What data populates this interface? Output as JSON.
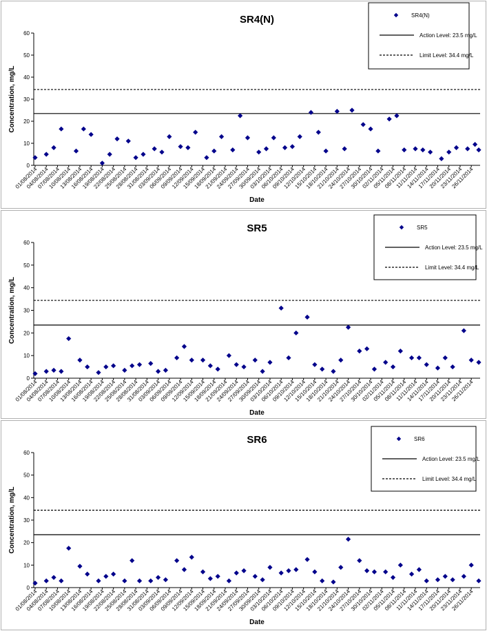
{
  "dates": [
    "01/08/2014",
    "04/08/2014",
    "07/08/2014",
    "10/08/2014",
    "13/08/2014",
    "16/08/2014",
    "19/08/2014",
    "22/08/2014",
    "25/08/2014",
    "28/08/2014",
    "31/08/2014",
    "03/09/2014",
    "06/09/2014",
    "09/09/2014",
    "12/09/2014",
    "15/09/2014",
    "18/09/2014",
    "21/09/2014",
    "24/09/2014",
    "27/09/2014",
    "30/09/2014",
    "03/10/2014",
    "06/10/2014",
    "09/10/2014",
    "12/10/2014",
    "15/10/2014",
    "18/10/2014",
    "21/10/2014",
    "24/10/2014",
    "27/10/2014",
    "30/10/2014",
    "02/11/2014",
    "05/11/2014",
    "08/11/2014",
    "11/11/2014",
    "14/11/2014",
    "17/11/2014",
    "20/11/2014",
    "23/11/2014",
    "26/11/2014"
  ],
  "chart_data": [
    {
      "type": "scatter",
      "title": "SR4(N)",
      "xlabel": "Date",
      "ylabel": "Concentration, mg/L",
      "ylim": [
        0,
        60
      ],
      "yticks": [
        "0",
        "10",
        "20",
        "30",
        "40",
        "50",
        "60"
      ],
      "x_range": [
        "01/08/2014",
        "28/11/2014"
      ],
      "grid": false,
      "legend_position": "top-right",
      "series": [
        {
          "name": "SR4(N)",
          "color": "#00008B",
          "marker": "diamond",
          "x": [
            "01/08/2014",
            "04/08/2014",
            "06/08/2014",
            "08/08/2014",
            "12/08/2014",
            "14/08/2014",
            "16/08/2014",
            "19/08/2014",
            "21/08/2014",
            "23/08/2014",
            "26/08/2014",
            "28/08/2014",
            "30/08/2014",
            "02/09/2014",
            "04/09/2014",
            "06/09/2014",
            "09/09/2014",
            "11/09/2014",
            "13/09/2014",
            "16/09/2014",
            "18/09/2014",
            "20/09/2014",
            "23/09/2014",
            "25/09/2014",
            "27/09/2014",
            "30/09/2014",
            "02/10/2014",
            "04/10/2014",
            "07/10/2014",
            "09/10/2014",
            "11/10/2014",
            "14/10/2014",
            "16/10/2014",
            "18/10/2014",
            "21/10/2014",
            "23/10/2014",
            "25/10/2014",
            "28/10/2014",
            "30/10/2014",
            "01/11/2014",
            "04/11/2014",
            "06/11/2014",
            "08/11/2014",
            "11/11/2014",
            "13/11/2014",
            "15/11/2014",
            "18/11/2014",
            "20/11/2014",
            "22/11/2014",
            "25/11/2014",
            "27/11/2014",
            "28/11/2014"
          ],
          "y": [
            3.5,
            5,
            8,
            16.5,
            6.5,
            16.5,
            14,
            1,
            5,
            12,
            11,
            3.5,
            5,
            7.5,
            6,
            13,
            8.5,
            8,
            15,
            3.5,
            6.5,
            13,
            7,
            22.5,
            12.5,
            6,
            7.5,
            12.5,
            8,
            8.5,
            13,
            24,
            15,
            6.5,
            24.5,
            7.5,
            25,
            18.5,
            16.5,
            6.5,
            21,
            22.5,
            7,
            7.5,
            7,
            6,
            3,
            6,
            8,
            7.5,
            9.5,
            7
          ]
        }
      ],
      "reference_lines": [
        {
          "name": "Action Level: 23.5 mg/L",
          "value": 23.5,
          "style": "solid"
        },
        {
          "name": "Limit Level: 34.4 mg/L",
          "value": 34.4,
          "style": "dashed"
        }
      ]
    },
    {
      "type": "scatter",
      "title": "SR5",
      "xlabel": "Date",
      "ylabel": "Concentration, mg/L",
      "ylim": [
        0,
        60
      ],
      "yticks": [
        "0",
        "10",
        "20",
        "30",
        "40",
        "50",
        "60"
      ],
      "x_range": [
        "01/08/2014",
        "28/11/2014"
      ],
      "grid": false,
      "legend_position": "top-right",
      "series": [
        {
          "name": "SR5",
          "color": "#00008B",
          "marker": "diamond",
          "x": [
            "01/08/2014",
            "04/08/2014",
            "06/08/2014",
            "08/08/2014",
            "10/08/2014",
            "13/08/2014",
            "15/08/2014",
            "18/08/2014",
            "20/08/2014",
            "22/08/2014",
            "25/08/2014",
            "27/08/2014",
            "29/08/2014",
            "01/09/2014",
            "03/09/2014",
            "05/09/2014",
            "08/09/2014",
            "10/09/2014",
            "12/09/2014",
            "15/09/2014",
            "17/09/2014",
            "19/09/2014",
            "22/09/2014",
            "24/09/2014",
            "26/09/2014",
            "29/09/2014",
            "01/10/2014",
            "03/10/2014",
            "06/10/2014",
            "08/10/2014",
            "10/10/2014",
            "13/10/2014",
            "15/10/2014",
            "17/10/2014",
            "20/10/2014",
            "22/10/2014",
            "24/10/2014",
            "27/10/2014",
            "29/10/2014",
            "31/10/2014",
            "03/11/2014",
            "05/11/2014",
            "07/11/2014",
            "10/11/2014",
            "12/11/2014",
            "14/11/2014",
            "17/11/2014",
            "19/11/2014",
            "21/11/2014",
            "24/11/2014",
            "26/11/2014",
            "28/11/2014"
          ],
          "y": [
            2,
            3,
            3.5,
            3,
            17.5,
            8,
            5,
            2.5,
            5,
            5.5,
            3.5,
            5.5,
            6,
            6.5,
            3,
            3.5,
            9,
            14,
            8,
            8,
            5.5,
            4,
            10,
            6,
            5,
            8,
            3,
            7,
            31,
            9,
            20,
            27,
            6,
            4,
            3,
            8,
            22.5,
            12,
            13,
            4,
            7,
            5,
            12,
            9,
            9,
            6,
            4.5,
            9,
            5,
            21,
            8,
            7
          ]
        }
      ],
      "reference_lines": [
        {
          "name": "Action Level: 23.5 mg/L",
          "value": 23.5,
          "style": "solid"
        },
        {
          "name": "Limit Level: 34.4 mg/L",
          "value": 34.4,
          "style": "dashed"
        }
      ]
    },
    {
      "type": "scatter",
      "title": "SR6",
      "xlabel": "Date",
      "ylabel": "Concentration, mg/L",
      "ylim": [
        0,
        60
      ],
      "yticks": [
        "0",
        "10",
        "20",
        "30",
        "40",
        "50",
        "60"
      ],
      "x_range": [
        "01/08/2014",
        "28/11/2014"
      ],
      "grid": false,
      "legend_position": "top-right",
      "series": [
        {
          "name": "SR6",
          "color": "#00008B",
          "marker": "diamond",
          "x": [
            "01/08/2014",
            "04/08/2014",
            "06/08/2014",
            "08/08/2014",
            "10/08/2014",
            "13/08/2014",
            "15/08/2014",
            "18/08/2014",
            "20/08/2014",
            "22/08/2014",
            "25/08/2014",
            "27/08/2014",
            "29/08/2014",
            "01/09/2014",
            "03/09/2014",
            "05/09/2014",
            "08/09/2014",
            "10/09/2014",
            "12/09/2014",
            "15/09/2014",
            "17/09/2014",
            "19/09/2014",
            "22/09/2014",
            "24/09/2014",
            "26/09/2014",
            "29/09/2014",
            "01/10/2014",
            "03/10/2014",
            "06/10/2014",
            "08/10/2014",
            "10/10/2014",
            "13/10/2014",
            "15/10/2014",
            "17/10/2014",
            "20/10/2014",
            "22/10/2014",
            "24/10/2014",
            "27/10/2014",
            "29/10/2014",
            "31/10/2014",
            "03/11/2014",
            "05/11/2014",
            "07/11/2014",
            "10/11/2014",
            "12/11/2014",
            "14/11/2014",
            "17/11/2014",
            "19/11/2014",
            "21/11/2014",
            "24/11/2014",
            "26/11/2014",
            "28/11/2014"
          ],
          "y": [
            2,
            3,
            4.5,
            3,
            17.5,
            9.5,
            6,
            3,
            5,
            6,
            3,
            12,
            3,
            3,
            4.5,
            3.5,
            12,
            8,
            13.5,
            7,
            4,
            5,
            3,
            6.5,
            7.5,
            5,
            3.5,
            9,
            6.5,
            7.5,
            8,
            12.5,
            7,
            3,
            2.5,
            9,
            21.5,
            12,
            7.5,
            7,
            7,
            4.5,
            10,
            6,
            8,
            3,
            3.5,
            5,
            3.5,
            5,
            10,
            3
          ]
        }
      ],
      "reference_lines": [
        {
          "name": "Action Level: 23.5 mg/L",
          "value": 23.5,
          "style": "solid"
        },
        {
          "name": "Limit Level: 34.4 mg/L",
          "value": 34.4,
          "style": "dashed"
        }
      ]
    }
  ]
}
